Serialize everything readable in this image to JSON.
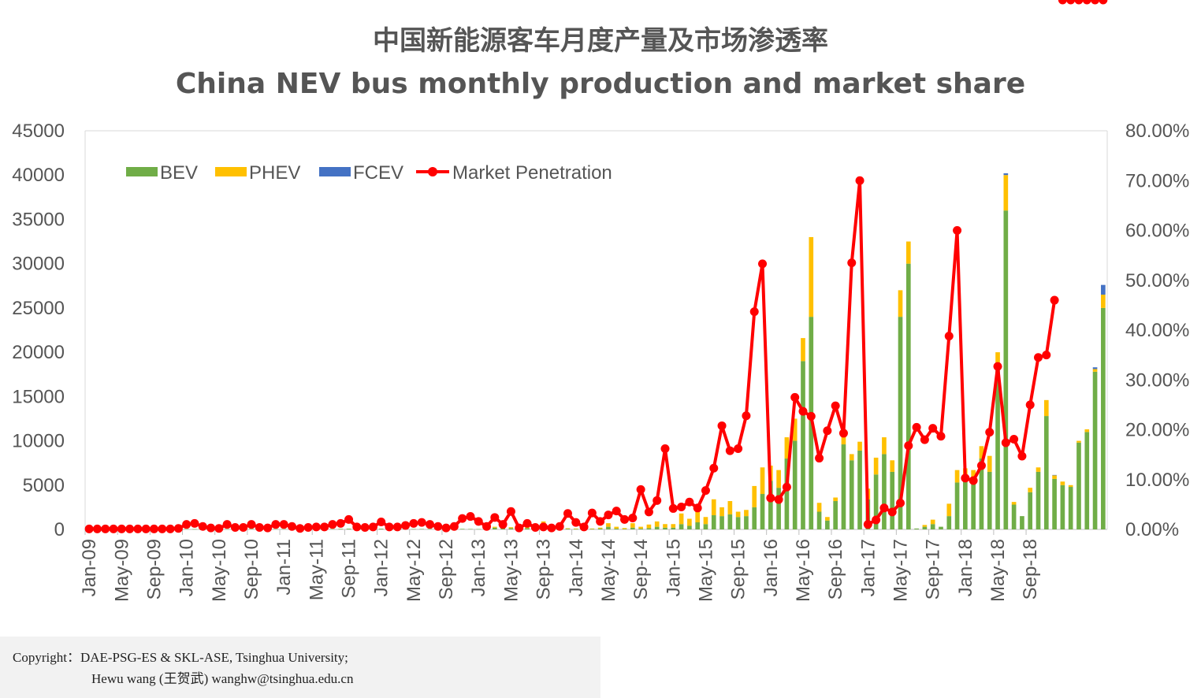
{
  "title_zh": "中国新能源客车月度产量及市场渗透率",
  "title_en": "China NEV bus monthly production and market share",
  "copyright": {
    "line1": "Copyright：DAE-PSG-ES & SKL-ASE, Tsinghua University;",
    "line2": "Hewu wang (王贺武)  wanghw@tsinghua.edu.cn"
  },
  "chart_data": {
    "type": "bar",
    "stacked": true,
    "x_tick_labels": [
      "Jan-09",
      "May-09",
      "Sep-09",
      "Jan-10",
      "May-10",
      "Sep-10",
      "Jan-11",
      "May-11",
      "Sep-11",
      "Jan-12",
      "May-12",
      "Sep-12",
      "Jan-13",
      "May-13",
      "Sep-13",
      "Jan-14",
      "May-14",
      "Sep-14",
      "Jan-15",
      "May-15",
      "Sep-15",
      "Jan-16",
      "May-16",
      "Sep-16",
      "Jan-17",
      "May-17",
      "Sep-17",
      "Jan-18",
      "May-18",
      "Sep-18"
    ],
    "y_left": {
      "min": 0,
      "max": 45000,
      "ticks": [
        "0",
        "5000",
        "10000",
        "15000",
        "20000",
        "25000",
        "30000",
        "35000",
        "40000",
        "45000"
      ]
    },
    "y_right": {
      "min": 0,
      "max": 80,
      "ticks": [
        "0.00%",
        "10.00%",
        "20.00%",
        "30.00%",
        "40.00%",
        "50.00%",
        "60.00%",
        "70.00%",
        "80.00%"
      ]
    },
    "legend_position": "top-left",
    "colors": {
      "BEV": "#70ad47",
      "PHEV": "#ffc000",
      "FCEV": "#4472c4",
      "Market Penetration": "#ff0000"
    },
    "series": [
      {
        "name": "BEV",
        "axis": "left",
        "values": [
          20,
          20,
          20,
          20,
          20,
          20,
          20,
          20,
          20,
          20,
          20,
          20,
          40,
          30,
          50,
          40,
          40,
          30,
          40,
          30,
          60,
          40,
          30,
          40,
          40,
          40,
          30,
          30,
          40,
          40,
          40,
          60,
          80,
          50,
          50,
          50,
          80,
          40,
          50,
          50,
          40,
          50,
          50,
          50,
          60,
          60,
          60,
          50,
          40,
          50,
          200,
          250,
          150,
          100,
          150,
          80,
          400,
          100,
          150,
          80,
          50,
          50,
          50,
          100,
          300,
          100,
          50,
          200,
          100,
          150,
          300,
          200,
          200,
          600,
          400,
          800,
          600,
          1600,
          1500,
          1700,
          1400,
          1500,
          2500,
          4000,
          5500,
          4700,
          8000,
          10000,
          19000,
          24000,
          2000,
          1000,
          3200,
          9600,
          7800,
          8900,
          3400,
          6200,
          8500,
          6500,
          24000,
          30000,
          100,
          300,
          600,
          300,
          1500,
          5300,
          5400,
          5500,
          8000,
          6500,
          18000,
          36000,
          2800,
          1500,
          4200,
          6500,
          12800,
          5700,
          5000,
          4800,
          9800,
          11000,
          17800,
          25000
        ]
      },
      {
        "name": "PHEV",
        "axis": "left",
        "values": [
          0,
          0,
          0,
          0,
          0,
          0,
          0,
          0,
          0,
          0,
          0,
          0,
          0,
          0,
          0,
          0,
          0,
          0,
          0,
          0,
          0,
          0,
          0,
          0,
          0,
          0,
          0,
          0,
          0,
          0,
          0,
          0,
          0,
          0,
          0,
          0,
          0,
          0,
          0,
          0,
          0,
          0,
          0,
          0,
          0,
          0,
          0,
          0,
          0,
          0,
          100,
          200,
          100,
          50,
          100,
          50,
          500,
          50,
          100,
          50,
          50,
          50,
          50,
          100,
          400,
          200,
          100,
          500,
          200,
          400,
          600,
          400,
          400,
          1200,
          800,
          1200,
          800,
          1800,
          1000,
          1500,
          600,
          700,
          2400,
          3000,
          1700,
          2000,
          2400,
          2500,
          2600,
          9000,
          1000,
          400,
          400,
          1500,
          700,
          1000,
          1200,
          1900,
          1900,
          1300,
          3000,
          2500,
          0,
          200,
          500,
          0,
          1400,
          1400,
          1500,
          1200,
          1400,
          1800,
          2000,
          4000,
          300,
          0,
          500,
          500,
          1800,
          400,
          400,
          200,
          200,
          300,
          300,
          1500
        ]
      },
      {
        "name": "FCEV",
        "axis": "left",
        "values": [
          0,
          0,
          0,
          0,
          0,
          0,
          0,
          0,
          0,
          0,
          0,
          0,
          0,
          0,
          0,
          0,
          0,
          0,
          0,
          0,
          0,
          0,
          0,
          0,
          0,
          0,
          0,
          0,
          0,
          0,
          0,
          0,
          0,
          0,
          0,
          0,
          0,
          0,
          0,
          0,
          0,
          0,
          0,
          0,
          0,
          0,
          0,
          0,
          0,
          0,
          0,
          0,
          0,
          0,
          0,
          0,
          0,
          0,
          0,
          0,
          0,
          0,
          0,
          0,
          0,
          0,
          0,
          0,
          0,
          0,
          0,
          0,
          0,
          0,
          0,
          0,
          0,
          0,
          0,
          0,
          0,
          0,
          0,
          0,
          0,
          0,
          0,
          0,
          0,
          0,
          0,
          0,
          0,
          0,
          0,
          0,
          0,
          0,
          0,
          0,
          0,
          0,
          0,
          0,
          0,
          0,
          0,
          0,
          0,
          0,
          0,
          0,
          0,
          200,
          0,
          0,
          0,
          0,
          0,
          50,
          0,
          0,
          0,
          0,
          200,
          1100
        ]
      },
      {
        "name": "Market Penetration",
        "axis": "right",
        "values": [
          0.1,
          0.1,
          0.1,
          0.1,
          0.1,
          0.1,
          0.1,
          0.1,
          0.1,
          0.1,
          0.1,
          0.2,
          1.0,
          1.2,
          0.6,
          0.3,
          0.2,
          1.0,
          0.4,
          0.4,
          1.0,
          0.4,
          0.3,
          1.0,
          1.0,
          0.6,
          0.2,
          0.4,
          0.5,
          0.5,
          1.0,
          1.2,
          2.0,
          0.5,
          0.4,
          0.5,
          1.5,
          0.5,
          0.5,
          0.8,
          1.2,
          1.4,
          1.0,
          0.6,
          0.3,
          0.6,
          2.2,
          2.6,
          1.6,
          0.6,
          2.4,
          1.0,
          3.6,
          0.3,
          1.2,
          0.4,
          0.5,
          0.3,
          0.6,
          3.2,
          1.4,
          0.5,
          3.3,
          1.6,
          2.9,
          3.7,
          2.0,
          2.3,
          8.0,
          3.5,
          5.8,
          16.2,
          4.2,
          4.5,
          5.5,
          4.3,
          7.8,
          12.3,
          20.8,
          15.8,
          16.2,
          22.8,
          43.7,
          53.3,
          6.3,
          6.0,
          8.5,
          26.5,
          23.7,
          22.7,
          14.3,
          19.8,
          24.8,
          19.3,
          53.5,
          70.0,
          1.0,
          1.9,
          4.3,
          3.5,
          5.3,
          16.8,
          20.5,
          18.0,
          20.3,
          18.7,
          38.8,
          60.0,
          10.3,
          9.8,
          12.8,
          19.5,
          32.7,
          17.4,
          18.1,
          14.7,
          25.0,
          34.5,
          35.0,
          46.0
        ]
      }
    ]
  }
}
